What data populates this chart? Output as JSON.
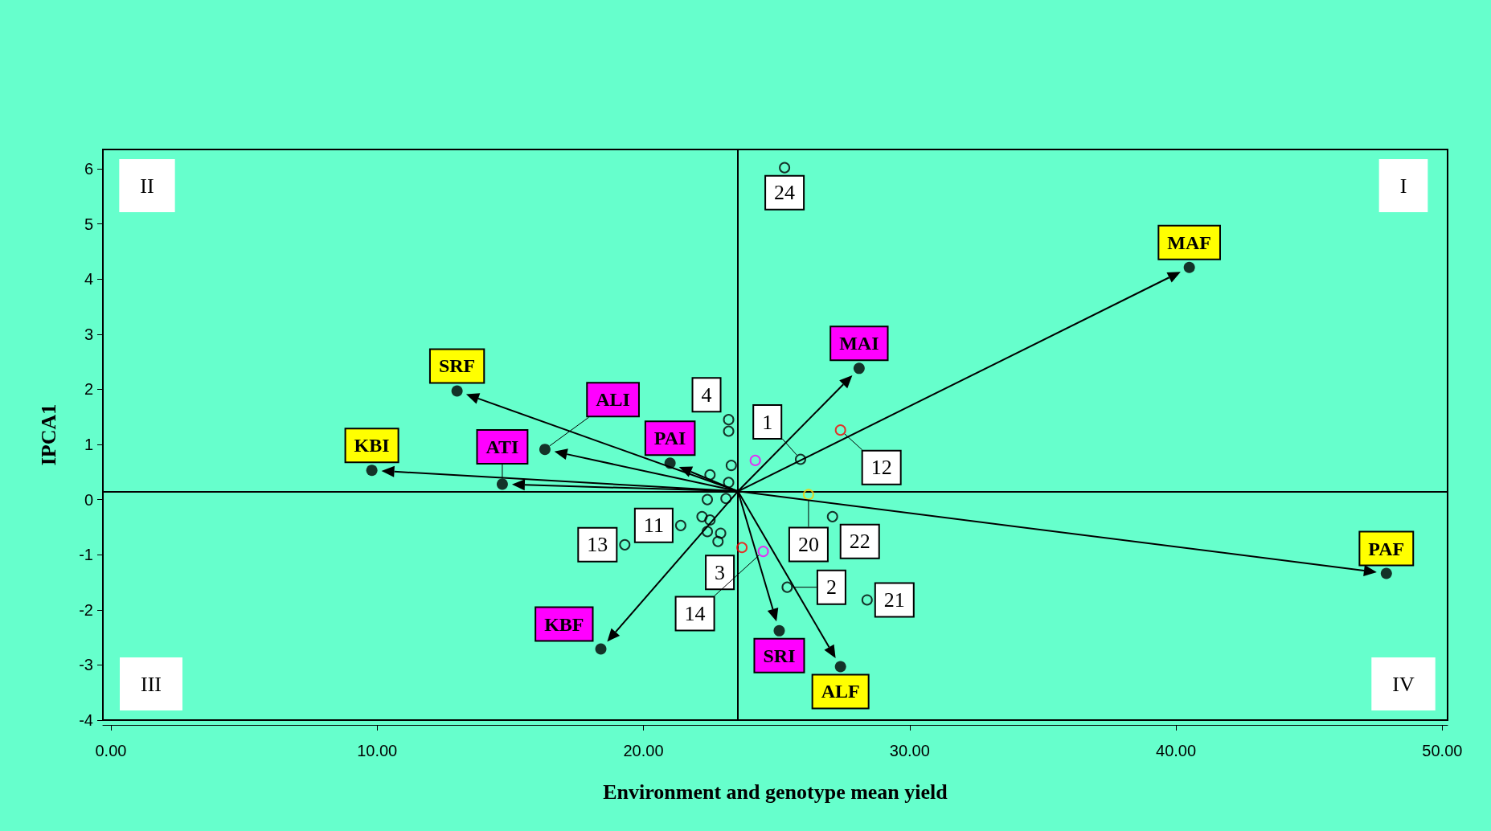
{
  "chart_data": {
    "type": "scatter",
    "xlabel": "Environment and genotype mean yield",
    "ylabel": "IPCA1",
    "xlim": [
      -0.3,
      50.2
    ],
    "ylim": [
      -4,
      6.35
    ],
    "xticks": [
      {
        "value": 0,
        "label": "0.00"
      },
      {
        "value": 10,
        "label": "10.00"
      },
      {
        "value": 20,
        "label": "20.00"
      },
      {
        "value": 30,
        "label": "30.00"
      },
      {
        "value": 40,
        "label": "40.00"
      },
      {
        "value": 50,
        "label": "50.00"
      }
    ],
    "yticks": [
      -4,
      -3,
      -2,
      -1,
      0,
      1,
      2,
      3,
      4,
      5,
      6
    ],
    "grid": false,
    "marker": "circle",
    "ref_lines": [
      {
        "axis": "x",
        "value": 23.55,
        "color": "#000000"
      },
      {
        "axis": "y",
        "value": 0.15,
        "color": "#000000"
      }
    ],
    "series": [
      {
        "color": "#000000",
        "x": [
          40.5,
          13.0,
          9.8,
          27.4,
          47.9
        ],
        "values": [
          4.21,
          1.97,
          0.53,
          -3.03,
          -1.34
        ]
      },
      {
        "color": "#000000",
        "x": [
          28.1,
          14.7,
          16.3,
          21.0,
          18.4,
          25.1
        ],
        "values": [
          2.38,
          0.28,
          0.91,
          0.66,
          -2.71,
          -2.38
        ]
      },
      {
        "x": [
          25.3,
          23.2,
          23.2,
          27.4,
          24.2,
          25.9,
          23.3,
          22.5,
          23.2,
          22.4,
          23.1,
          26.2,
          27.1,
          22.2,
          22.5,
          21.4,
          22.4,
          22.9,
          22.8,
          19.3,
          23.7,
          24.5,
          25.4,
          28.4
        ],
        "values": [
          6.02,
          1.45,
          1.24,
          1.26,
          0.71,
          0.73,
          0.62,
          0.45,
          0.31,
          0.0,
          0.02,
          0.09,
          -0.31,
          -0.31,
          -0.37,
          -0.47,
          -0.58,
          -0.61,
          -0.76,
          -0.82,
          -0.87,
          -0.94,
          -1.59,
          -1.82
        ],
        "colors": [
          "#000000",
          "#000000",
          "#000000",
          "#ff0000",
          "#ff00ff",
          "#000000",
          "#000000",
          "#000000",
          "#000000",
          "#000000",
          "#000000",
          "#ffcc00",
          "#000000",
          "#000000",
          "#000000",
          "#000000",
          "#000000",
          "#000000",
          "#000000",
          "#000000",
          "#ff0000",
          "#ff00ff",
          "#000000",
          "#000000"
        ]
      }
    ],
    "annotations": [
      "I",
      "II",
      "III",
      "IV",
      {
        "text": "MAF",
        "x": 40.5,
        "y": 4.21
      },
      {
        "text": "SRF",
        "x": 13.0,
        "y": 1.97
      },
      {
        "text": "KBI",
        "x": 9.8,
        "y": 0.53
      },
      {
        "text": "ALF",
        "x": 27.4,
        "y": -3.03
      },
      {
        "text": "PAF",
        "x": 47.9,
        "y": -1.34
      },
      {
        "text": "MAI",
        "x": 28.1,
        "y": 2.38
      },
      {
        "text": "ATI",
        "x": 14.7,
        "y": 0.28
      },
      {
        "text": "ALI",
        "x": 16.3,
        "y": 0.91
      },
      {
        "text": "PAI",
        "x": 21.0,
        "y": 0.66
      },
      {
        "text": "KBF",
        "x": 18.4,
        "y": -2.71
      },
      {
        "text": "SRI",
        "x": 25.1,
        "y": -2.38
      },
      {
        "text": "24",
        "x": 25.3,
        "y": 6.02
      },
      {
        "text": "4",
        "x": 23.2,
        "y": 1.45
      },
      {
        "text": "12",
        "x": 27.4,
        "y": 1.26
      },
      {
        "text": "1",
        "x": 25.9,
        "y": 0.73
      },
      {
        "text": "20",
        "x": 26.2,
        "y": 0.09
      },
      {
        "text": "22",
        "x": 27.1,
        "y": -0.31
      },
      {
        "text": "11",
        "x": 21.4,
        "y": -0.47
      },
      {
        "text": "13",
        "x": 19.3,
        "y": -0.82
      },
      {
        "text": "3",
        "x": 23.7,
        "y": -0.87
      },
      {
        "text": "14",
        "x": 24.5,
        "y": -0.94
      },
      {
        "text": "2",
        "x": 25.4,
        "y": -1.59
      },
      {
        "text": "21",
        "x": 28.4,
        "y": -1.82
      }
    ]
  }
}
